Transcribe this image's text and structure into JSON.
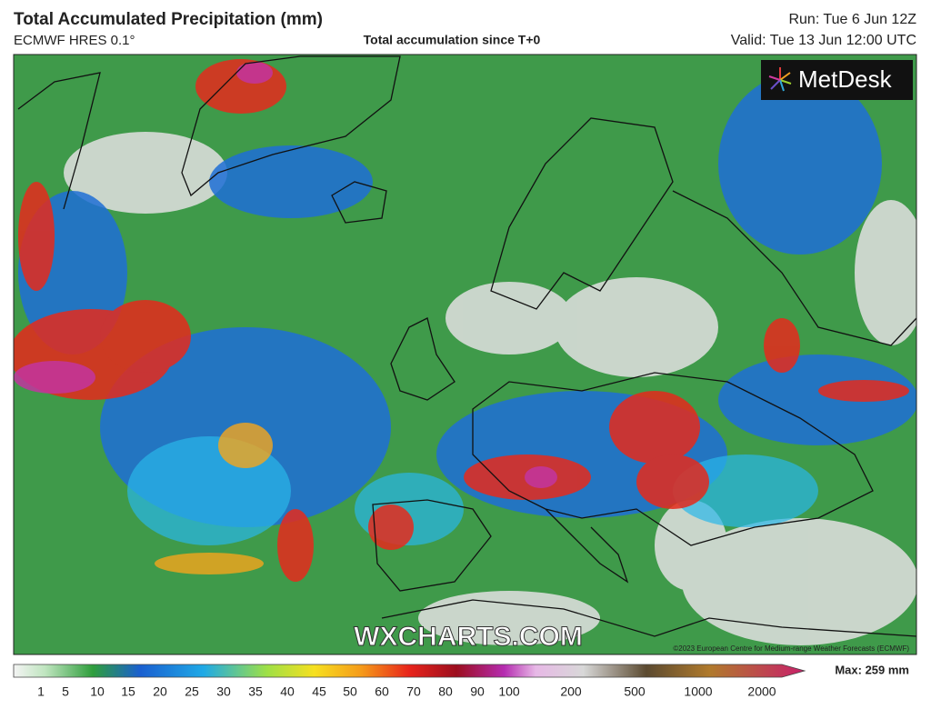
{
  "header": {
    "title": "Total Accumulated Precipitation (mm)",
    "model": "ECMWF HRES 0.1°",
    "subtitle": "Total accumulation since T+0",
    "run": "Run: Tue 6 Jun 12Z",
    "valid": "Valid: Tue 13 Jun 12:00 UTC"
  },
  "map": {
    "logo": "MetDesk",
    "watermark": "WXCHARTS.COM",
    "copyright": "©2023 European Centre for Medium-range Weather Forecasts (ECMWF)"
  },
  "colorbar": {
    "labels": [
      "1",
      "5",
      "10",
      "15",
      "20",
      "25",
      "30",
      "35",
      "40",
      "45",
      "50",
      "60",
      "70",
      "80",
      "90",
      "100",
      "200",
      "500",
      "1000",
      "2000"
    ],
    "max": "Max: 259 mm"
  }
}
